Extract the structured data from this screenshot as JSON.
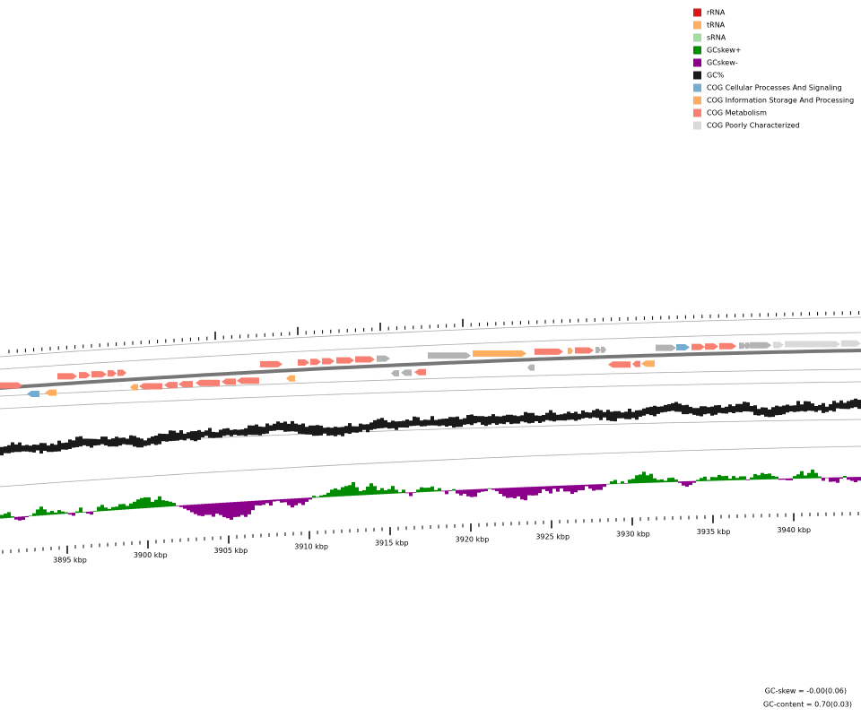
{
  "legend": [
    {
      "label": "rRNA",
      "color": "#d7191c"
    },
    {
      "label": "tRNA",
      "color": "#fdae61"
    },
    {
      "label": "sRNA",
      "color": "#a6dba0"
    },
    {
      "label": "GCskew+",
      "color": "#008b00"
    },
    {
      "label": "GCskew-",
      "color": "#8b008b"
    },
    {
      "label": "GC%",
      "color": "#1a1a1a"
    },
    {
      "label": "COG Cellular Processes And Signaling",
      "color": "#74add1"
    },
    {
      "label": "COG Information Storage And Processing",
      "color": "#fdae61"
    },
    {
      "label": "COG Metabolism",
      "color": "#f88072"
    },
    {
      "label": "COG Poorly Characterized",
      "color": "#d9d9d9"
    }
  ],
  "ruler_labels": [
    "3895 kbp",
    "3900 kbp",
    "3905 kbp",
    "3910 kbp",
    "3915 kbp",
    "3920 kbp",
    "3925 kbp",
    "3930 kbp",
    "3935 kbp",
    "3940 kbp"
  ],
  "footer": {
    "gc_skew": "GC-skew = -0.00(0.06)",
    "gc_content": "GC-content = 0.70(0.03)"
  }
}
